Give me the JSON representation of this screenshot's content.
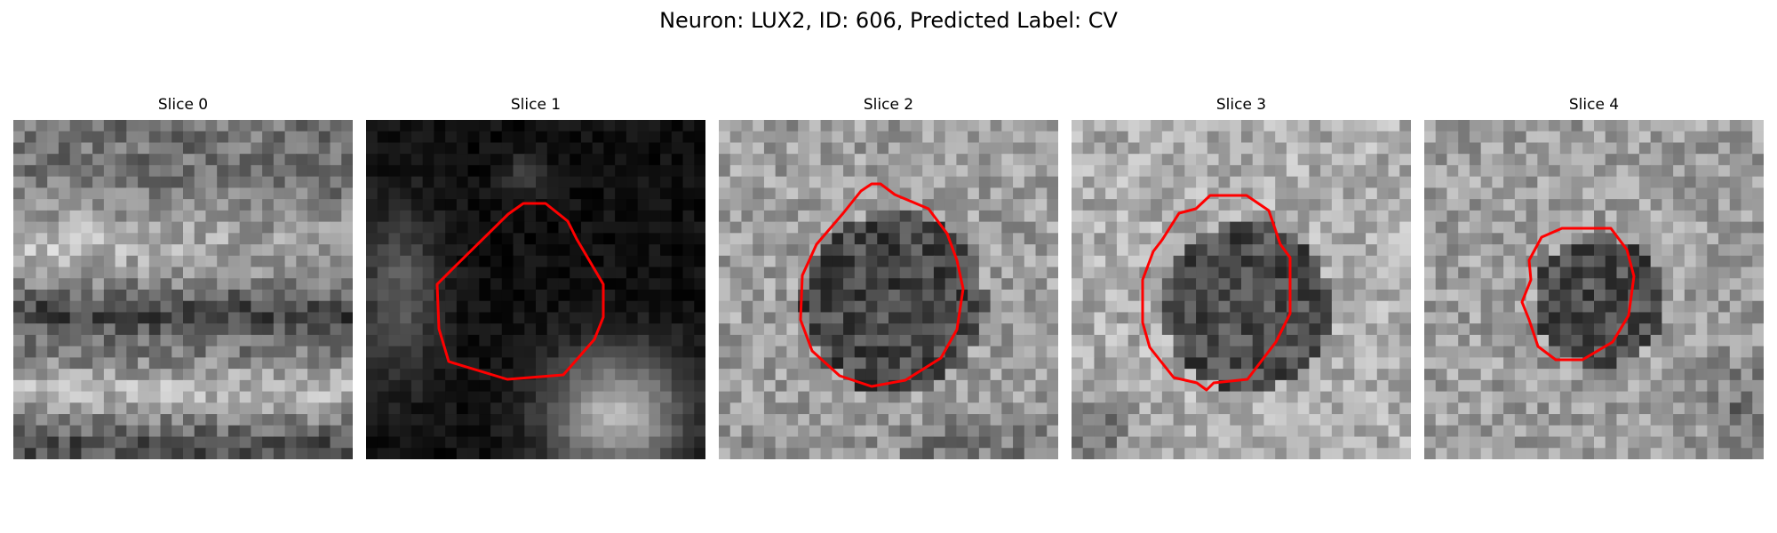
{
  "figure": {
    "title": "Neuron: LUX2, ID: 606, Predicted Label: CV"
  },
  "panels": [
    {
      "title": "Slice 0",
      "brightness": "medium",
      "has_contour": false
    },
    {
      "title": "Slice 1",
      "brightness": "dark",
      "has_contour": true
    },
    {
      "title": "Slice 2",
      "brightness": "medium",
      "has_contour": true
    },
    {
      "title": "Slice 3",
      "brightness": "bright",
      "has_contour": true
    },
    {
      "title": "Slice 4",
      "brightness": "bright",
      "has_contour": true
    }
  ],
  "colors": {
    "contour": "#ff0000",
    "background": "#ffffff"
  },
  "colormap": "grayscale",
  "icons": []
}
